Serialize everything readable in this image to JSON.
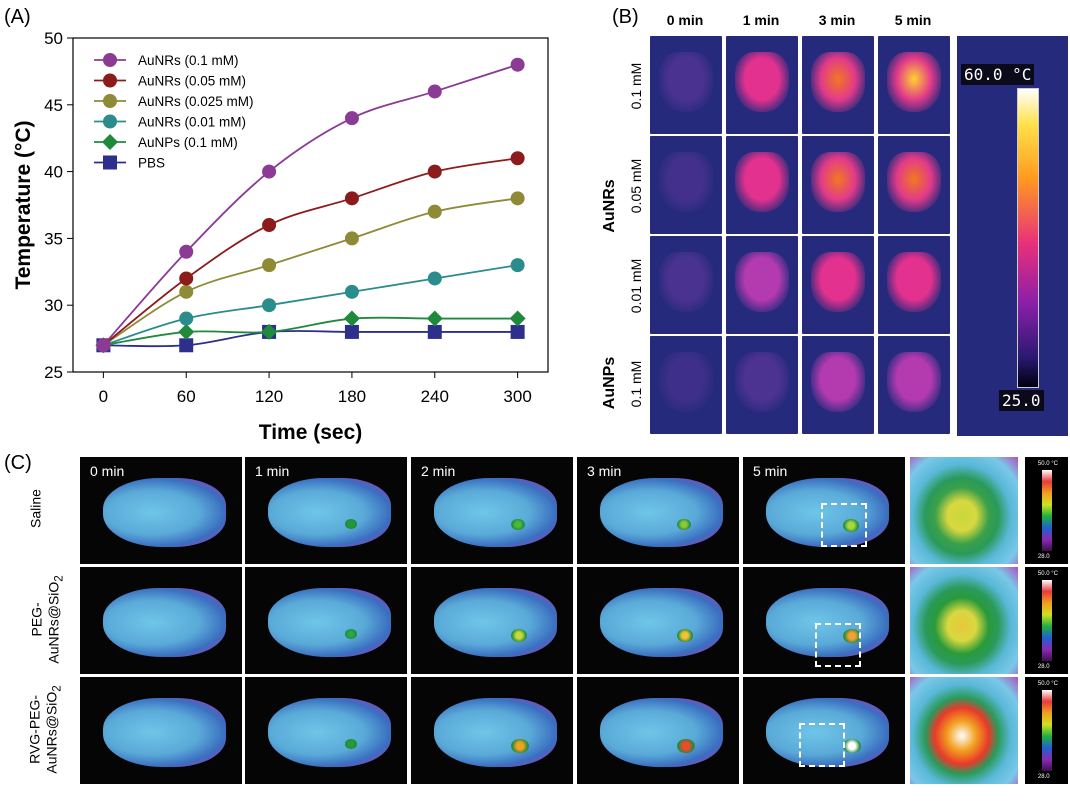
{
  "panels": {
    "a": "(A)",
    "b": "(B)",
    "c": "(C)"
  },
  "chart_data": {
    "type": "line",
    "xlabel": "Time (sec)",
    "ylabel": "Temperature (°C)",
    "x": [
      0,
      60,
      120,
      180,
      240,
      300
    ],
    "xticks": [
      0,
      60,
      120,
      180,
      240,
      300
    ],
    "yticks": [
      25,
      30,
      35,
      40,
      45,
      50
    ],
    "xlim": [
      -22,
      322
    ],
    "ylim": [
      25,
      50
    ],
    "legend_position": "top-left",
    "series": [
      {
        "name": "AuNRs (0.1 mM)",
        "color": "#8b3a96",
        "marker": "circle",
        "values": [
          27,
          34,
          40,
          44,
          46,
          48
        ]
      },
      {
        "name": "AuNRs (0.05 mM)",
        "color": "#8c1c1c",
        "marker": "circle",
        "values": [
          27,
          32,
          36,
          38,
          40,
          41
        ]
      },
      {
        "name": "AuNRs (0.025 mM)",
        "color": "#8f8a36",
        "marker": "circle",
        "values": [
          27,
          31,
          33,
          35,
          37,
          38
        ]
      },
      {
        "name": "AuNRs (0.01 mM)",
        "color": "#2a8c8c",
        "marker": "circle",
        "values": [
          27,
          29,
          30,
          31,
          32,
          33
        ]
      },
      {
        "name": "AuNPs (0.1 mM)",
        "color": "#1f8a3c",
        "marker": "diamond",
        "values": [
          27,
          28,
          28,
          29,
          29,
          29
        ]
      },
      {
        "name": "PBS",
        "color": "#2e2e8c",
        "marker": "square",
        "values": [
          27,
          27,
          28,
          28,
          28,
          28
        ]
      }
    ]
  },
  "panel_b": {
    "times": [
      "0 min",
      "1 min",
      "3 min",
      "5 min"
    ],
    "rows": [
      "0.1 mM",
      "0.05 mM",
      "0.01 mM",
      "0.1 mM"
    ],
    "groups": [
      "AuNRs",
      "AuNPs"
    ],
    "scale_max": "60.0 °C",
    "scale_min": "25.0"
  },
  "panel_c": {
    "times": [
      "0 min",
      "1 min",
      "2 min",
      "3 min",
      "5 min"
    ],
    "rows": [
      "Saline",
      "PEG-",
      "AuNRs@SiO",
      "RVG-PEG-",
      "AuNRs@SiO"
    ],
    "subscript": "2",
    "scale_max": "50.0 °C",
    "scale_min": "28.0"
  }
}
